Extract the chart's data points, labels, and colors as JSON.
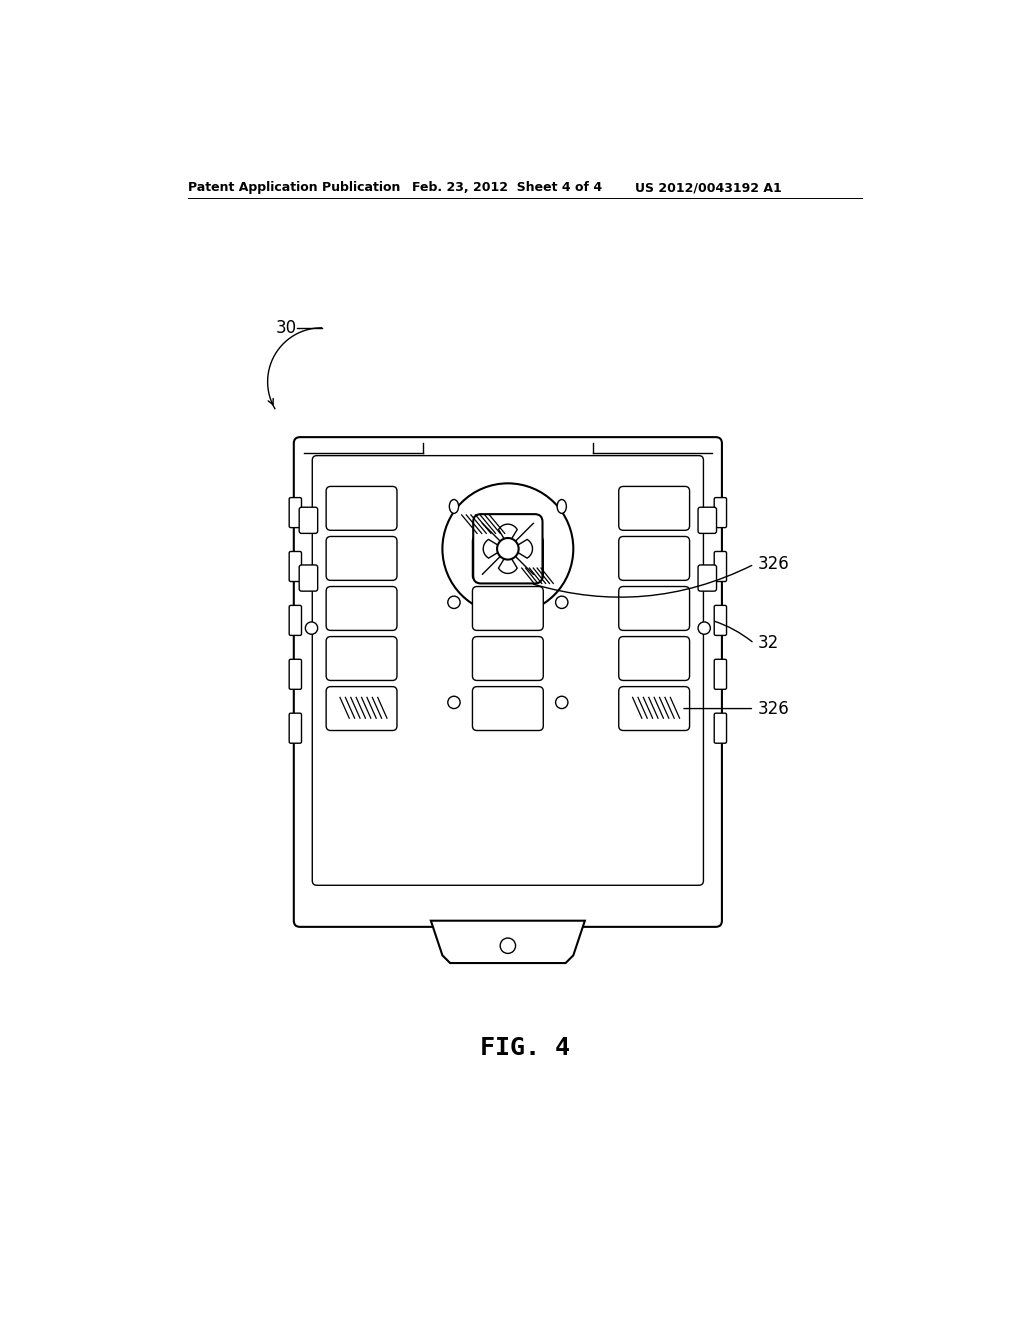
{
  "bg_color": "#ffffff",
  "line_color": "#000000",
  "header_left": "Patent Application Publication",
  "header_mid": "Feb. 23, 2012  Sheet 4 of 4",
  "header_right": "US 2012/0043192 A1",
  "fig_label": "FIG. 4",
  "label_30": "30",
  "label_32": "32",
  "label_326a": "326",
  "label_326b": "326"
}
